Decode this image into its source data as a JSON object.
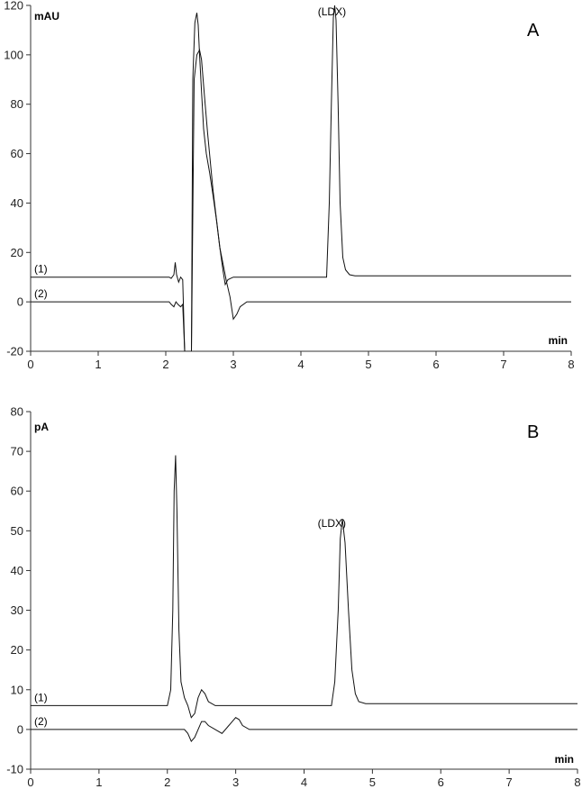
{
  "chart_data": [
    {
      "type": "line",
      "panel_label": "A",
      "ylabel": "mAU",
      "xlabel": "min",
      "xlim": [
        0,
        8
      ],
      "ylim": [
        -20,
        120
      ],
      "xticks": [
        0,
        1,
        2,
        3,
        4,
        5,
        6,
        7,
        8
      ],
      "yticks": [
        -20,
        0,
        20,
        40,
        60,
        80,
        100,
        120
      ],
      "grid": false,
      "annotations": [
        {
          "text": "(LDX)",
          "x": 4.25,
          "y": 116
        }
      ],
      "series": [
        {
          "name": "(1)",
          "x": [
            0.0,
            2.05,
            2.08,
            2.12,
            2.14,
            2.16,
            2.19,
            2.22,
            2.25,
            2.28,
            2.3,
            2.33,
            2.36,
            2.38,
            2.4,
            2.43,
            2.46,
            2.48,
            2.5,
            2.53,
            2.56,
            2.6,
            2.65,
            2.7,
            2.75,
            2.8,
            2.85,
            2.88,
            2.92,
            2.96,
            3.0,
            3.05,
            3.2,
            4.38,
            4.42,
            4.45,
            4.48,
            4.5,
            4.52,
            4.55,
            4.58,
            4.62,
            4.66,
            4.72,
            4.8,
            5.0,
            8.0
          ],
          "y": [
            10,
            10,
            9.5,
            11,
            16,
            11,
            8,
            10,
            9,
            -20,
            -20,
            -20,
            -20,
            -20,
            90,
            113,
            117,
            112,
            100,
            85,
            70,
            60,
            52,
            43,
            33,
            22,
            12,
            7,
            9,
            9.5,
            10,
            10,
            10,
            10,
            40,
            80,
            115,
            120,
            114,
            80,
            40,
            18,
            13,
            11,
            10.5,
            10.5,
            10.5
          ]
        },
        {
          "name": "(2)",
          "x": [
            0.0,
            2.05,
            2.08,
            2.12,
            2.15,
            2.18,
            2.22,
            2.25,
            2.28,
            2.33,
            2.38,
            2.42,
            2.46,
            2.5,
            2.53,
            2.57,
            2.62,
            2.7,
            2.8,
            2.9,
            2.95,
            3.0,
            3.05,
            3.1,
            3.2,
            8.0
          ],
          "y": [
            0,
            0,
            -1,
            -2,
            0,
            -1,
            -2,
            -1,
            -20,
            -20,
            -20,
            90,
            100,
            102,
            98,
            84,
            68,
            45,
            22,
            8,
            2,
            -7,
            -5,
            -2,
            0,
            0
          ]
        }
      ]
    },
    {
      "type": "line",
      "panel_label": "B",
      "ylabel": "pA",
      "xlabel": "min",
      "xlim": [
        0,
        8
      ],
      "ylim": [
        -10,
        80
      ],
      "xticks": [
        0,
        1,
        2,
        3,
        4,
        5,
        6,
        7,
        8
      ],
      "yticks": [
        -10,
        0,
        10,
        20,
        30,
        40,
        50,
        60,
        70,
        80
      ],
      "grid": false,
      "annotations": [
        {
          "text": "(LDX)",
          "x": 4.2,
          "y": 51
        }
      ],
      "series": [
        {
          "name": "(1)",
          "x": [
            0.0,
            2.0,
            2.05,
            2.08,
            2.1,
            2.12,
            2.14,
            2.17,
            2.2,
            2.25,
            2.3,
            2.35,
            2.4,
            2.45,
            2.5,
            2.55,
            2.6,
            2.65,
            2.7,
            2.8,
            2.9,
            3.0,
            4.4,
            4.45,
            4.5,
            4.53,
            4.56,
            4.6,
            4.65,
            4.7,
            4.75,
            4.8,
            4.9,
            5.0,
            8.0
          ],
          "y": [
            6,
            6,
            10,
            30,
            60,
            69,
            55,
            25,
            12,
            8,
            6,
            3,
            4,
            8,
            10,
            9,
            7,
            6.5,
            6,
            6,
            6,
            6,
            6,
            12,
            30,
            48,
            53,
            47,
            30,
            15,
            9,
            7,
            6.5,
            6.5,
            6.5
          ]
        },
        {
          "name": "(2)",
          "x": [
            0.0,
            2.25,
            2.3,
            2.35,
            2.4,
            2.45,
            2.5,
            2.55,
            2.6,
            2.7,
            2.8,
            2.9,
            2.95,
            3.0,
            3.05,
            3.1,
            3.2,
            3.3,
            8.0
          ],
          "y": [
            0,
            0,
            -1,
            -3,
            -2,
            0,
            2,
            2,
            1,
            0,
            -1,
            1,
            2,
            3,
            2.5,
            1,
            0,
            0,
            0
          ]
        }
      ]
    }
  ]
}
